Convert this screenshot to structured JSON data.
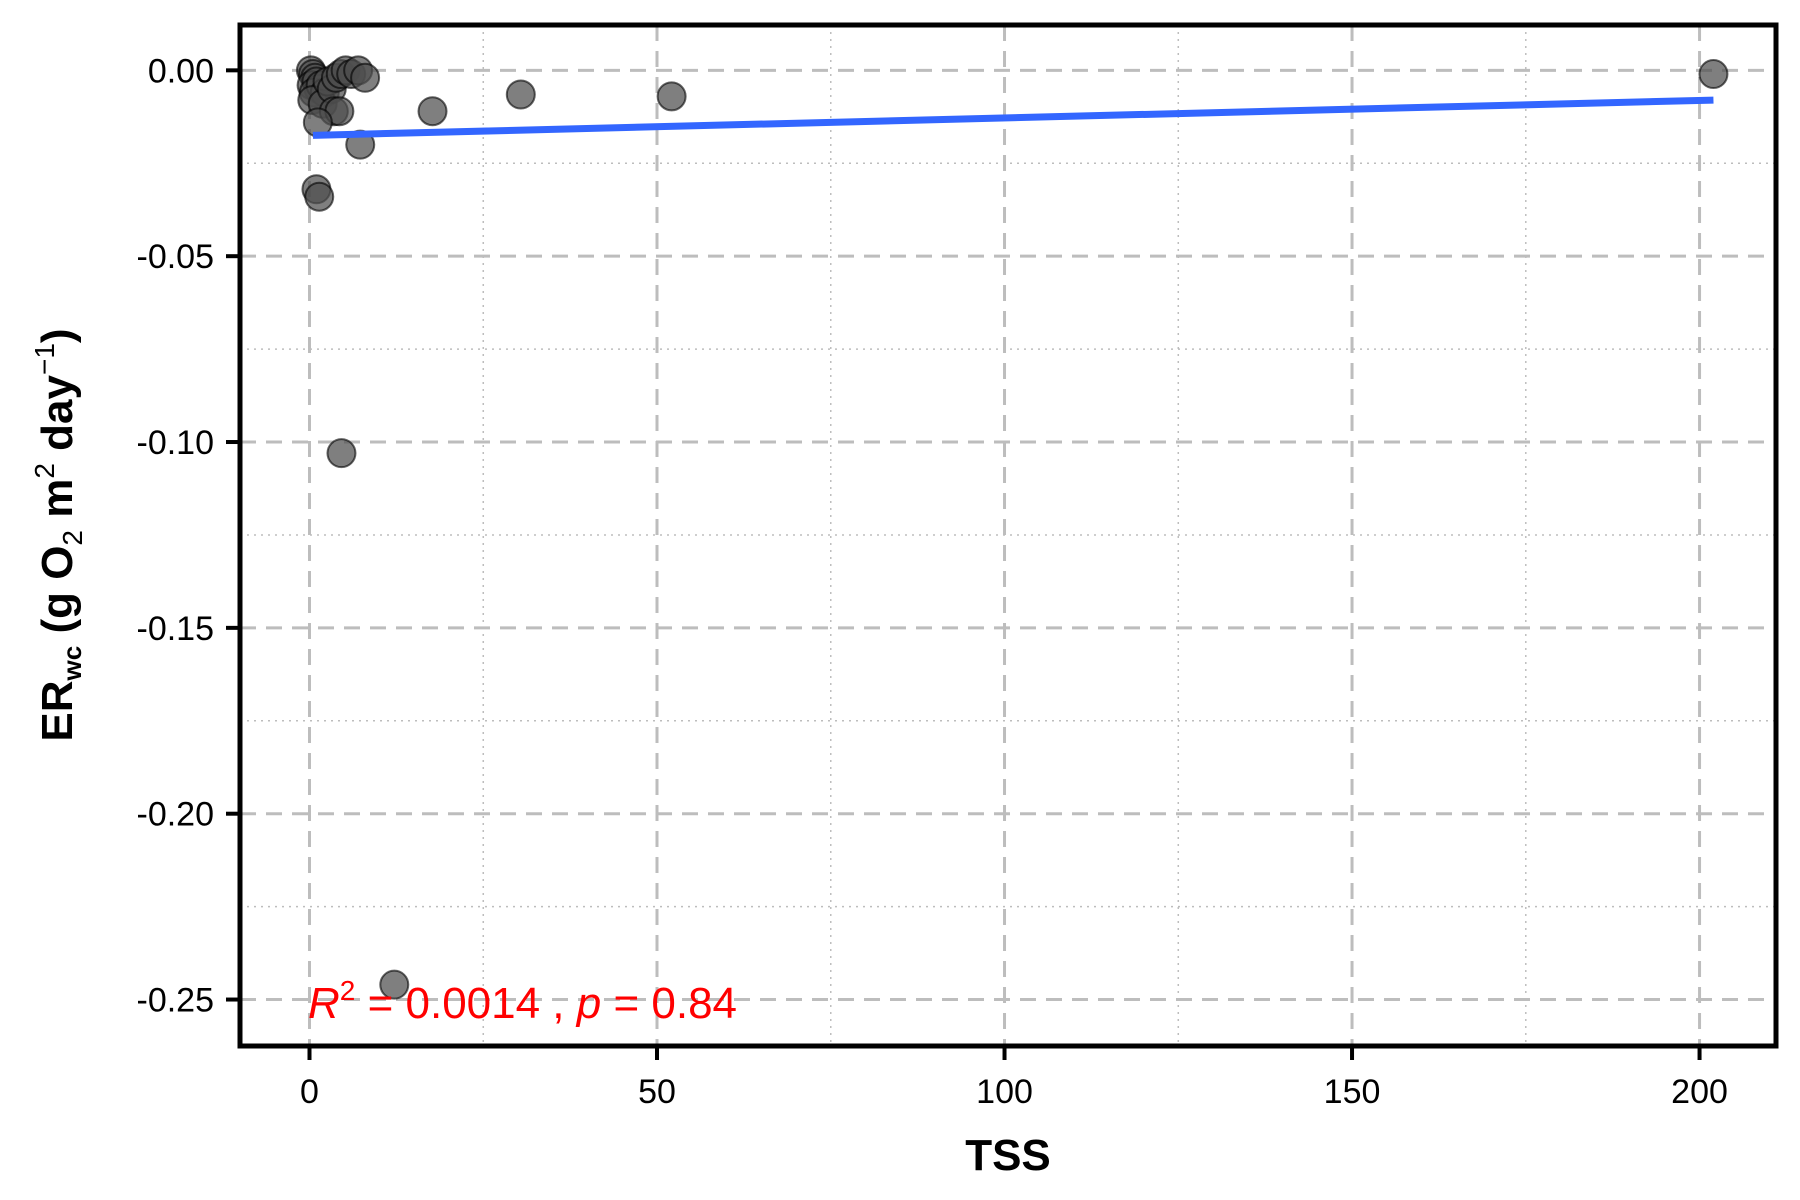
{
  "chart_data": {
    "type": "scatter",
    "title": "",
    "xlabel": "TSS",
    "ylabel": {
      "main": "ER",
      "sub": "wc",
      "unit_open": " (g O",
      "unit_o2_sub": "2",
      "unit_m": " m",
      "unit_m_sup": "2",
      "unit_day": " day",
      "unit_day_sup": "−1",
      "unit_close": ")"
    },
    "xlim": [
      -10,
      211
    ],
    "ylim": [
      -0.2625,
      0.0122
    ],
    "x_ticks": [
      0,
      50,
      100,
      150,
      200
    ],
    "x_tick_labels": [
      "0",
      "50",
      "100",
      "150",
      "200"
    ],
    "x_minor_ticks": [
      25,
      75,
      125,
      175
    ],
    "y_ticks": [
      0.0,
      -0.05,
      -0.1,
      -0.15,
      -0.2,
      -0.25
    ],
    "y_tick_labels": [
      "0.00",
      "-0.05",
      "-0.10",
      "-0.15",
      "-0.20",
      "-0.25"
    ],
    "y_minor_ticks": [
      -0.025,
      -0.075,
      -0.125,
      -0.175,
      -0.225
    ],
    "grid": true,
    "points": [
      {
        "x": 0.2,
        "y": 0.0
      },
      {
        "x": 0.5,
        "y": -0.001
      },
      {
        "x": 0.8,
        "y": -0.002
      },
      {
        "x": 0.3,
        "y": -0.004
      },
      {
        "x": 1.0,
        "y": -0.003
      },
      {
        "x": 1.3,
        "y": -0.005
      },
      {
        "x": 0.6,
        "y": -0.006
      },
      {
        "x": 1.6,
        "y": -0.004
      },
      {
        "x": 2.2,
        "y": -0.006
      },
      {
        "x": 0.4,
        "y": -0.008
      },
      {
        "x": 1.9,
        "y": -0.009
      },
      {
        "x": 2.6,
        "y": -0.003
      },
      {
        "x": 3.2,
        "y": -0.005
      },
      {
        "x": 3.8,
        "y": -0.002
      },
      {
        "x": 4.5,
        "y": -0.001
      },
      {
        "x": 5.2,
        "y": 0.0
      },
      {
        "x": 6.0,
        "y": -0.001
      },
      {
        "x": 7.0,
        "y": 0.0
      },
      {
        "x": 8.0,
        "y": -0.002
      },
      {
        "x": 3.5,
        "y": -0.011
      },
      {
        "x": 4.3,
        "y": -0.011
      },
      {
        "x": 1.2,
        "y": -0.014
      },
      {
        "x": 7.3,
        "y": -0.02
      },
      {
        "x": 1.0,
        "y": -0.032
      },
      {
        "x": 1.4,
        "y": -0.034
      },
      {
        "x": 4.6,
        "y": -0.103
      },
      {
        "x": 12.2,
        "y": -0.246
      },
      {
        "x": 17.7,
        "y": -0.011
      },
      {
        "x": 30.4,
        "y": -0.0065
      },
      {
        "x": 52.1,
        "y": -0.007
      },
      {
        "x": 202.0,
        "y": -0.001
      }
    ],
    "regression_line": {
      "x": [
        0.5,
        202.0
      ],
      "y": [
        -0.0175,
        -0.008
      ],
      "color": "#3366ff"
    },
    "annotation": {
      "r_label": "R",
      "r_sup": "2",
      "r_value_text": " = 0.0014 , ",
      "p_label": "p",
      "p_value_text": " = 0.84",
      "color": "#ff0000"
    },
    "point_color": "#4d4d4d",
    "grid_color": "#bdbdbd"
  }
}
